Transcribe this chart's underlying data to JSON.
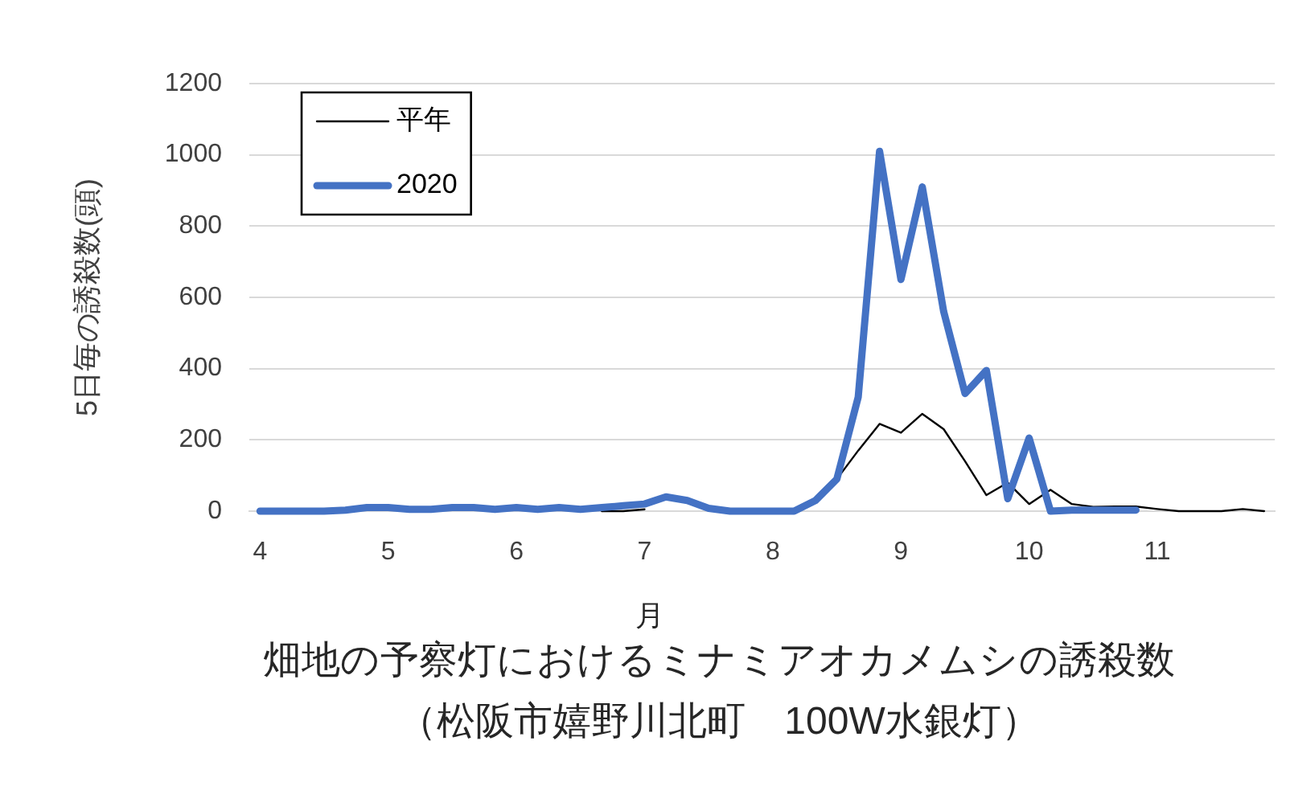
{
  "chart_data": {
    "type": "line",
    "title": "畑地の予察灯におけるミナミアオカメムシの誘殺数",
    "subtitle": "（松阪市嬉野川北町　100W水銀灯）",
    "xlabel": "月",
    "ylabel": "5日毎の誘殺数(頭)",
    "categories": [
      "4",
      null,
      null,
      null,
      null,
      null,
      "5",
      null,
      null,
      null,
      null,
      null,
      "6",
      null,
      null,
      null,
      null,
      null,
      "7",
      null,
      null,
      null,
      null,
      null,
      "8",
      null,
      null,
      null,
      null,
      null,
      "9",
      null,
      null,
      null,
      null,
      null,
      "10",
      null,
      null,
      null,
      null,
      null,
      "11",
      null,
      null,
      null,
      null,
      null
    ],
    "series": [
      {
        "name": "平年",
        "color": "#000000",
        "values": [
          null,
          null,
          null,
          null,
          null,
          null,
          null,
          null,
          null,
          null,
          null,
          null,
          null,
          null,
          null,
          null,
          0,
          0,
          5,
          null,
          null,
          null,
          null,
          null,
          null,
          null,
          null,
          90,
          170,
          245,
          220,
          273,
          230,
          140,
          45,
          80,
          20,
          60,
          20,
          12,
          13,
          13,
          6,
          0,
          0,
          0,
          6,
          0
        ]
      },
      {
        "name": "2020",
        "color": "#4472c4",
        "values": [
          0,
          0,
          0,
          0,
          3,
          10,
          10,
          5,
          5,
          10,
          10,
          5,
          10,
          5,
          10,
          5,
          10,
          15,
          20,
          40,
          30,
          8,
          0,
          0,
          0,
          0,
          30,
          90,
          320,
          1010,
          650,
          910,
          560,
          330,
          395,
          35,
          205,
          0,
          3,
          3,
          3,
          3,
          null,
          null,
          null,
          null,
          null,
          null
        ]
      }
    ],
    "ylim": [
      0,
      1200
    ],
    "yticks": [
      0,
      200,
      400,
      600,
      800,
      1000,
      1200
    ],
    "grid": "y",
    "legend": "top left",
    "marker": "none"
  }
}
